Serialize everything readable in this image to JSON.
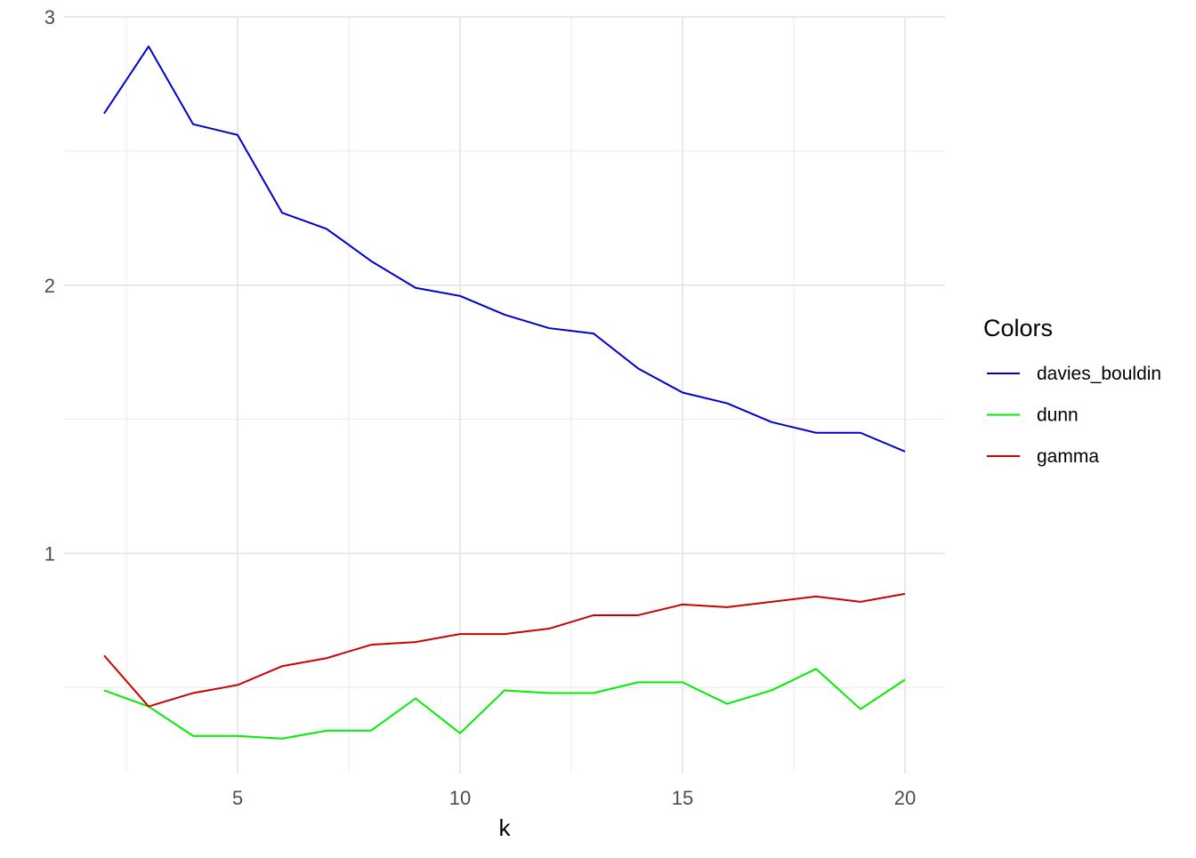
{
  "chart_data": {
    "type": "line",
    "title": "",
    "xlabel": "k",
    "ylabel": "",
    "xlim": [
      1.1,
      20.9
    ],
    "ylim": [
      0.18,
      3.0
    ],
    "x_ticks": [
      5,
      10,
      15,
      20
    ],
    "x_tick_labels": [
      "5",
      "10",
      "15",
      "20"
    ],
    "y_ticks": [
      1,
      2,
      3
    ],
    "y_tick_labels": [
      "1",
      "2",
      "3"
    ],
    "grid": true,
    "legend": {
      "title": "Colors",
      "placement": "right"
    },
    "x": [
      2,
      3,
      4,
      5,
      6,
      7,
      8,
      9,
      10,
      11,
      12,
      13,
      14,
      15,
      16,
      17,
      18,
      19,
      20
    ],
    "series": [
      {
        "name": "davies_bouldin",
        "color": "#0000CD",
        "values": [
          2.64,
          2.89,
          2.6,
          2.56,
          2.27,
          2.21,
          2.09,
          1.99,
          1.96,
          1.89,
          1.84,
          1.82,
          1.69,
          1.6,
          1.56,
          1.49,
          1.45,
          1.45,
          1.38
        ]
      },
      {
        "name": "dunn",
        "color": "#00EE00",
        "values": [
          0.49,
          0.43,
          0.32,
          0.32,
          0.31,
          0.34,
          0.34,
          0.46,
          0.33,
          0.49,
          0.48,
          0.48,
          0.52,
          0.52,
          0.44,
          0.49,
          0.57,
          0.42,
          0.53
        ]
      },
      {
        "name": "gamma",
        "color": "#CD0000",
        "values": [
          0.62,
          0.43,
          0.48,
          0.51,
          0.58,
          0.61,
          0.66,
          0.67,
          0.7,
          0.7,
          0.72,
          0.77,
          0.77,
          0.81,
          0.8,
          0.82,
          0.84,
          0.82,
          0.85
        ]
      }
    ]
  }
}
